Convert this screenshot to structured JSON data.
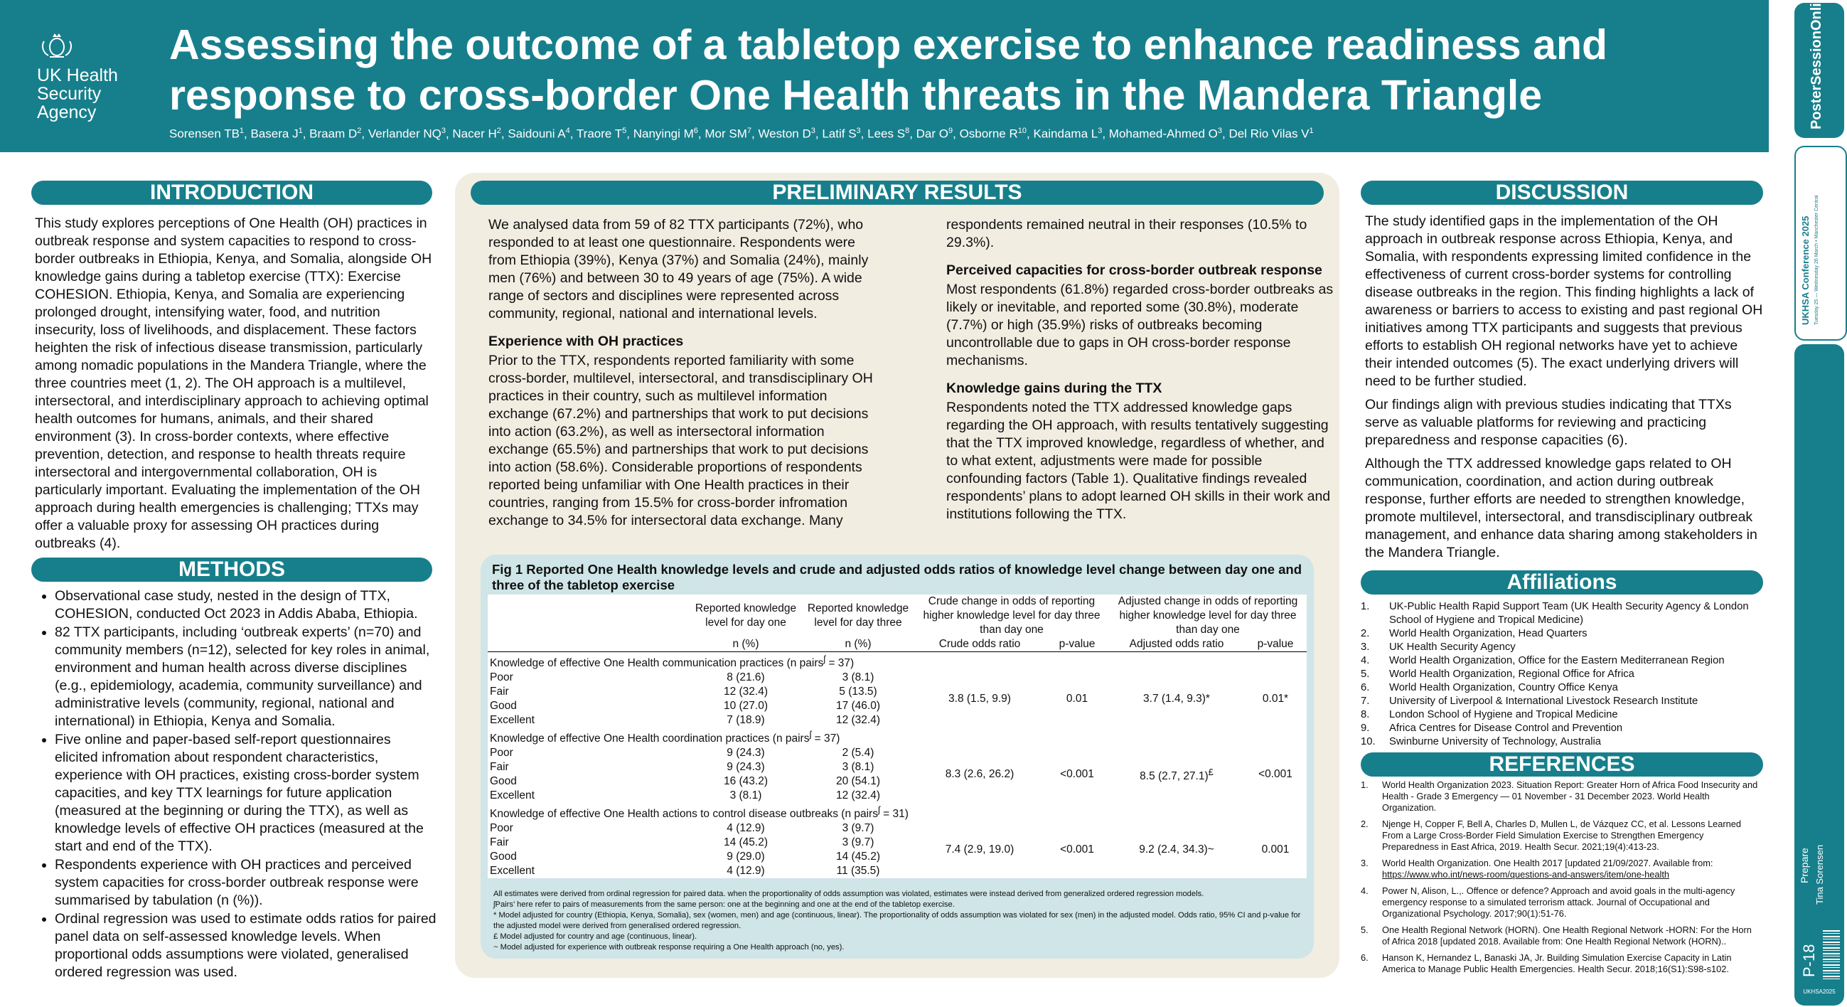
{
  "header": {
    "logo_lines": [
      "UK Health",
      "Security",
      "Agency"
    ],
    "title_line1": "Assessing the outcome of a tabletop exercise to enhance readiness and",
    "title_line2": "response to cross-border One Health threats in the Mandera Triangle",
    "authors": [
      {
        "name": "Sorensen TB",
        "sup": "1"
      },
      {
        "name": "Basera J",
        "sup": "1"
      },
      {
        "name": "Braam D",
        "sup": "2"
      },
      {
        "name": "Verlander NQ",
        "sup": "3"
      },
      {
        "name": "Nacer H",
        "sup": "2"
      },
      {
        "name": "Saidouni A",
        "sup": "4"
      },
      {
        "name": "Traore T",
        "sup": "5"
      },
      {
        "name": "Nanyingi M",
        "sup": "6"
      },
      {
        "name": "Mor SM",
        "sup": "7"
      },
      {
        "name": "Weston D",
        "sup": "3"
      },
      {
        "name": "Latif S",
        "sup": "3"
      },
      {
        "name": "Lees S",
        "sup": "8"
      },
      {
        "name": "Dar O",
        "sup": "9"
      },
      {
        "name": "Osborne R",
        "sup": "10"
      },
      {
        "name": "Kaindama L",
        "sup": "3"
      },
      {
        "name": "Mohamed-Ahmed O",
        "sup": "3"
      },
      {
        "name": "Del Rio Vilas V",
        "sup": "1"
      }
    ]
  },
  "sidebar": {
    "brand": "PosterSessionOnline",
    "conference": "UKHSA Conference 2025",
    "dates": "Tuesday 25 — Wednesday 26 March • Manchester Central",
    "prepare_label": "Prepare",
    "presenter": "Tina Sorensen",
    "poster_id": "P-18",
    "code": "UKHSA2025"
  },
  "introduction": {
    "heading": "INTRODUCTION",
    "text": "This study explores perceptions of One Health (OH) practices in outbreak response and system capacities to respond to cross-border outbreaks in Ethiopia, Kenya, and Somalia, alongside OH knowledge gains during a tabletop exercise (TTX): Exercise COHESION. Ethiopia, Kenya, and Somalia are experiencing prolonged drought, intensifying water, food, and nutrition insecurity, loss of livelihoods, and displacement. These factors heighten the risk of infectious disease transmission, particularly among nomadic populations in the Mandera Triangle, where the three countries meet (1, 2). The OH approach is a multilevel, intersectoral, and interdisciplinary approach to achieving optimal health outcomes for humans, animals, and their shared environment (3). In cross-border contexts, where effective prevention, detection, and response to health threats require intersectoral and intergovernmental collaboration, OH is particularly important. Evaluating the implementation of the OH approach during health emergencies is challenging; TTXs may offer a valuable proxy for assessing OH practices during outbreaks (4)."
  },
  "methods": {
    "heading": "METHODS",
    "bullets": [
      "Observational case study, nested in the design of TTX, COHESION, conducted Oct 2023 in Addis Ababa, Ethiopia.",
      "82 TTX participants, including ‘outbreak experts’ (n=70) and community members (n=12), selected for key roles in animal, environment and human health across diverse disciplines (e.g., epidemiology, academia, community surveillance) and administrative levels (community, regional, national and international) in Ethiopia, Kenya and Somalia.",
      "Five online and paper-based self-report questionnaires elicited infromation about respondent characteristics, experience with OH practices, existing cross-border system capacities, and key TTX learnings for future application (measured at the beginning or during the TTX), as well as knowledge levels of effective OH practices (measured at the start and end of the TTX).",
      "Respondents experience with OH practices and perceived system capacities for cross-border outbreak response were summarised by tabulation (n (%)).",
      "Ordinal regression was used to estimate odds ratios for paired panel data on self-assessed knowledge levels. When proportional odds assumptions were violated, generalised ordered regression was used."
    ]
  },
  "results": {
    "heading": "PRELIMINARY RESULTS",
    "intro": "We analysed data from 59 of 82 TTX participants (72%), who responded to at least one questionnaire. Respondents were from Ethiopia (39%), Kenya (37%) and Somalia (24%), mainly men (76%) and between 30 to 49 years of age (75%). A wide range of sectors and disciplines were represented across community, regional, national and international levels.",
    "experience_heading": "Experience with OH practices",
    "experience_text": "Prior to the TTX, respondents reported familiarity with some cross-border, multilevel, intersectoral, and transdisciplinary OH practices in their country, such as multilevel information exchange (67.2%) and partnerships that work to put decisions into action (63.2%), as well as intersectoral information exchange (65.5%) and partnerships that work to put decisions into action (58.6%). Considerable proportions of respondents reported being unfamiliar with One Health practices in their countries, ranging from 15.5% for cross-border infromation exchange to 34.5% for intersectoral data exchange. Many",
    "continued_text": "respondents remained neutral in their responses (10.5% to 29.3%).",
    "capacities_heading": "Perceived capacities for cross-border outbreak response",
    "capacities_text": "Most respondents (61.8%) regarded cross-border outbreaks as likely or inevitable, and reported some (30.8%), moderate (7.7%) or high (35.9%) risks of outbreaks becoming uncontrollable due to gaps in OH cross-border response mechanisms.",
    "knowledge_heading": "Knowledge gains during the TTX",
    "knowledge_text": "Respondents noted the TTX addressed knowledge gaps regarding the OH approach, with results tentatively suggesting that the TTX improved knowledge, regardless of whether, and to what extent, adjustments were made for possible confounding factors (Table 1). Qualitative findings revealed respondents’ plans to adopt learned OH skills in their work and institutions following the TTX."
  },
  "figure": {
    "title": "Fig 1 Reported One Health knowledge levels and crude and adjusted odds ratios of knowledge level change between day one and three of the tabletop exercise",
    "headers": {
      "day1": "Reported knowledge level for day one",
      "day3": "Reported knowledge level for day three",
      "crude": "Crude change in odds of reporting higher knowledge level for day three than day one",
      "adjusted": "Adjusted change in odds of reporting higher knowledge level for day three than day one",
      "n_pct": "n (%)",
      "crude_or": "Crude odds ratio",
      "p_value": "p-value",
      "adj_or": "Adjusted odds ratio"
    },
    "sections": [
      {
        "title": "Knowledge of effective One Health communication practices (n pairs",
        "title_sup": "ʃ",
        "title_end": " = 37)",
        "rows": [
          {
            "label": "Poor",
            "d1": "8 (21.6)",
            "d3": "3 (8.1)"
          },
          {
            "label": "Fair",
            "d1": "12 (32.4)",
            "d3": "5 (13.5)"
          },
          {
            "label": "Good",
            "d1": "10 (27.0)",
            "d3": "17 (46.0)"
          },
          {
            "label": "Excellent",
            "d1": "7 (18.9)",
            "d3": "12 (32.4)"
          }
        ],
        "crude_or": "3.8 (1.5, 9.9)",
        "crude_p": "0.01",
        "adj_or": "3.7 (1.4, 9.3)*",
        "adj_or_sup": "",
        "adj_p": "0.01*"
      },
      {
        "title": "Knowledge of effective One Health coordination practices (n pairs",
        "title_sup": "ʃ",
        "title_end": " = 37)",
        "rows": [
          {
            "label": "Poor",
            "d1": "9 (24.3)",
            "d3": "2 (5.4)"
          },
          {
            "label": "Fair",
            "d1": "9 (24.3)",
            "d3": "3 (8.1)"
          },
          {
            "label": "Good",
            "d1": "16 (43.2)",
            "d3": "20 (54.1)"
          },
          {
            "label": "Excellent",
            "d1": "3 (8.1)",
            "d3": "12 (32.4)"
          }
        ],
        "crude_or": "8.3 (2.6, 26.2)",
        "crude_p": "<0.001",
        "adj_or": "8.5 (2.7, 27.1)",
        "adj_or_sup": "£",
        "adj_p": "<0.001"
      },
      {
        "title": "Knowledge of effective One Health actions to control disease outbreaks (n pairs",
        "title_sup": "ʃ",
        "title_end": " = 31)",
        "rows": [
          {
            "label": "Poor",
            "d1": "4 (12.9)",
            "d3": "3 (9.7)"
          },
          {
            "label": "Fair",
            "d1": "14 (45.2)",
            "d3": "3 (9.7)"
          },
          {
            "label": "Good",
            "d1": "9 (29.0)",
            "d3": "14 (45.2)"
          },
          {
            "label": "Excellent",
            "d1": "4 (12.9)",
            "d3": "11 (35.5)"
          }
        ],
        "crude_or": "7.4 (2.9, 19.0)",
        "crude_p": "<0.001",
        "adj_or": "9.2 (2.4, 34.3)~",
        "adj_or_sup": "",
        "adj_p": "0.001"
      }
    ],
    "footnotes": [
      "All estimates were derived from ordinal regression for paired data. when the proportionality of odds assumption was violated, estimates were instead derived from generalized ordered regression models.",
      "ʃPairs’ here refer to pairs of measurements from the same person: one at the beginning and one at the end of the tabletop exercise.",
      "* Model adjusted for country (Ethiopia, Kenya, Somalia), sex (women, men) and age (continuous, linear). The proportionality of odds assumption was violated for sex (men) in the adjusted model. Odds ratio, 95% CI and p-value for the adjusted model were derived from generalised ordered regression.",
      "£ Model adjusted for country and age (continuous, linear).",
      "~ Model adjusted for experience with outbreak response requiring a One Health approach (no, yes)."
    ]
  },
  "discussion": {
    "heading": "DISCUSSION",
    "paragraphs": [
      "The study identified gaps in the implementation of the OH approach in outbreak response across Ethiopia, Kenya, and Somalia, with respondents expressing limited confidence in the effectiveness of current cross-border systems for controlling disease outbreaks in the region. This finding highlights a lack of awareness or barriers to access to existing and past regional OH initiatives among TTX participants and suggests that previous efforts to establish OH regional networks have yet to achieve their intended outcomes (5). The exact underlying drivers will need to be further studied.",
      "Our findings align with previous studies indicating that TTXs serve as valuable platforms for reviewing and practicing preparedness and response capacities (6).",
      "Although the TTX addressed knowledge gaps related to OH communication, coordination, and action during outbreak response, further efforts are needed to strengthen knowledge, promote multilevel, intersectoral, and transdisciplinary outbreak management, and enhance data sharing among stakeholders in the Mandera Triangle."
    ]
  },
  "affiliations": {
    "heading": "Affiliations",
    "items": [
      "UK-Public Health Rapid Support Team (UK Health Security Agency & London School of Hygiene and Tropical Medicine)",
      "World Health Organization, Head Quarters",
      "UK Health Security Agency",
      "World Health Organization, Office for the Eastern Mediterranean Region",
      "World Health Organization, Regional Office for Africa",
      "World Health Organization, Country Office Kenya",
      "University of Liverpool & International Livestock Research Institute",
      "London School of Hygiene and Tropical Medicine",
      "Africa Centres for Disease Control and Prevention",
      "Swinburne University of Technology, Australia"
    ]
  },
  "references": {
    "heading": "REFERENCES",
    "items": [
      {
        "text": "World Health Organization 2023. Situation Report: Greater Horn of Africa Food Insecurity and Health - Grade 3 Emergency — 01 November - 31 December 2023. World Health Organization.",
        "link": ""
      },
      {
        "text": "Njenge H, Copper F, Bell A, Charles D, Mullen L, de Vázquez CC, et al. Lessons Learned From a Large Cross-Border Field Simulation Exercise to Strengthen Emergency Preparedness in East Africa, 2019. Health Secur. 2021;19(4):413-23.",
        "link": ""
      },
      {
        "text": "World Health Organization. One Health 2017 [updated 21/09/2027. Available from: ",
        "link": "https://www.who.int/news-room/questions-and-answers/item/one-health"
      },
      {
        "text": "Power N, Alison, L.,. Offence or defence? Approach and avoid goals in the multi-agency emergency response to a simulated terrorism attack. Journal of Occupational and Organizational Psychology. 2017;90(1):51-76.",
        "link": ""
      },
      {
        "text": "One Health Regional Network (HORN). One Health Regional Network -HORN: For the Horn of Africa 2018 [updated 2018. Available from: One Health Regional Network (HORN)..",
        "link": ""
      },
      {
        "text": "Hanson K, Hernandez L, Banaski JA, Jr. Building Simulation Exercise Capacity in Latin America to Manage Public Health Emergencies. Health Secur. 2018;16(S1):S98-s102.",
        "link": ""
      }
    ]
  },
  "colors": {
    "teal": "#177f8c",
    "panel": "#f1ede1",
    "figure_bg": "#cfe5e7"
  }
}
